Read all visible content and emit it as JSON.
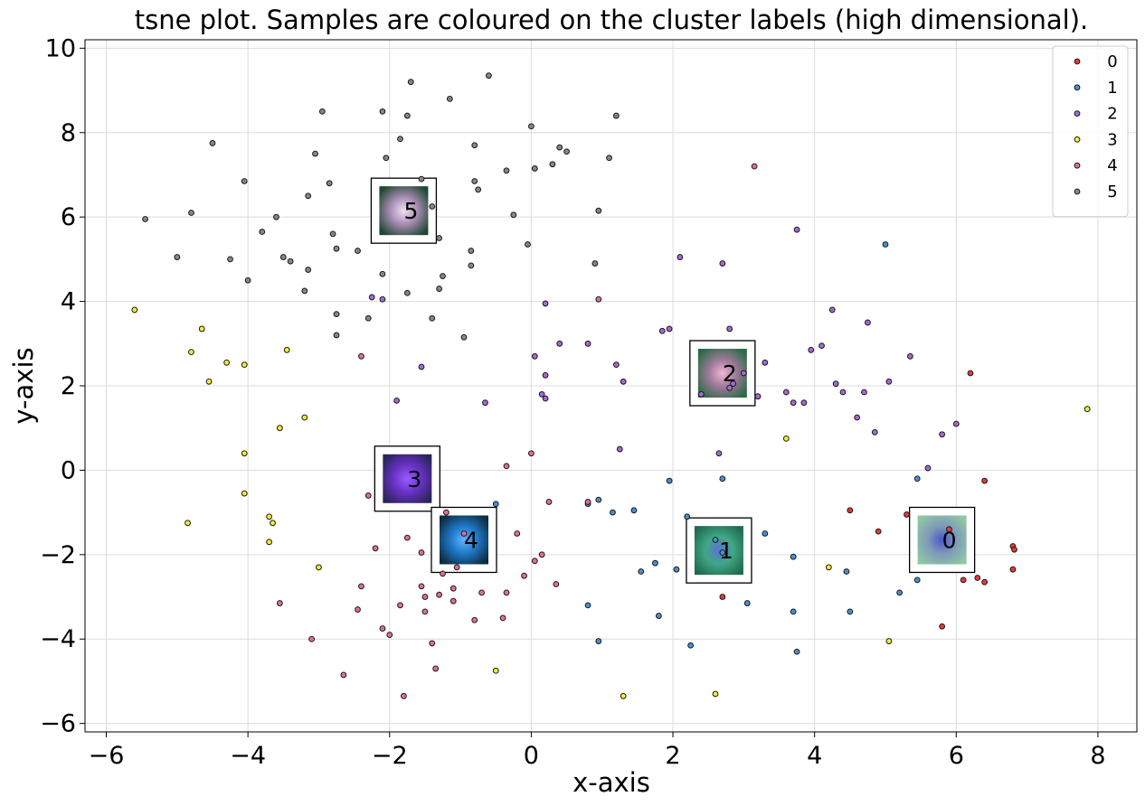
{
  "chart_data": {
    "type": "scatter",
    "title": "tsne plot. Samples are coloured on the cluster labels (high dimensional).",
    "xlabel": "x-axis",
    "ylabel": "y-axis",
    "xlim": [
      -6.3,
      8.55
    ],
    "ylim": [
      -6.2,
      10.2
    ],
    "xticks": [
      -6,
      -4,
      -2,
      0,
      2,
      4,
      6,
      8
    ],
    "xtick_labels": [
      "−6",
      "−4",
      "−2",
      "0",
      "2",
      "4",
      "6",
      "8"
    ],
    "yticks": [
      -6,
      -4,
      -2,
      0,
      2,
      4,
      6,
      8,
      10
    ],
    "ytick_labels": [
      "−6",
      "−4",
      "−2",
      "0",
      "2",
      "4",
      "6",
      "8",
      "10"
    ],
    "grid": true,
    "legend_position": "top-right",
    "series": [
      {
        "name": "0",
        "color": "#e8383a",
        "points": [
          [
            4.5,
            -0.95
          ],
          [
            4.9,
            -1.45
          ],
          [
            5.3,
            -1.05
          ],
          [
            6.2,
            2.3
          ],
          [
            6.4,
            -0.25
          ],
          [
            5.9,
            -1.4
          ],
          [
            6.1,
            -2.6
          ],
          [
            6.3,
            -2.55
          ],
          [
            6.4,
            -2.65
          ],
          [
            6.8,
            -1.8
          ],
          [
            6.82,
            -1.88
          ],
          [
            6.8,
            -2.35
          ],
          [
            5.8,
            -3.7
          ],
          [
            2.7,
            -3.0
          ]
        ]
      },
      {
        "name": "1",
        "color": "#4a8fd2",
        "points": [
          [
            0.8,
            -0.8
          ],
          [
            0.95,
            -0.7
          ],
          [
            1.15,
            -1.0
          ],
          [
            1.45,
            -0.95
          ],
          [
            1.55,
            -2.4
          ],
          [
            1.75,
            -2.2
          ],
          [
            2.05,
            -2.35
          ],
          [
            2.2,
            -1.1
          ],
          [
            1.95,
            -0.25
          ],
          [
            2.7,
            -0.2
          ],
          [
            2.6,
            -1.65
          ],
          [
            2.7,
            -1.95
          ],
          [
            3.3,
            -1.5
          ],
          [
            3.7,
            -2.05
          ],
          [
            3.05,
            -3.15
          ],
          [
            2.25,
            -4.15
          ],
          [
            1.8,
            -3.45
          ],
          [
            0.8,
            -3.2
          ],
          [
            0.95,
            -4.05
          ],
          [
            3.7,
            -3.35
          ],
          [
            3.75,
            -4.3
          ],
          [
            4.45,
            -2.4
          ],
          [
            4.5,
            -3.35
          ],
          [
            5.2,
            -2.9
          ],
          [
            5.45,
            -2.6
          ],
          [
            5.45,
            -0.2
          ],
          [
            5.0,
            5.35
          ],
          [
            -0.5,
            -0.8
          ]
        ]
      },
      {
        "name": "2",
        "color": "#a56ad2",
        "points": [
          [
            2.1,
            5.05
          ],
          [
            2.7,
            4.9
          ],
          [
            3.75,
            5.7
          ],
          [
            2.8,
            3.35
          ],
          [
            1.85,
            3.3
          ],
          [
            1.95,
            3.35
          ],
          [
            1.2,
            2.5
          ],
          [
            1.3,
            2.1
          ],
          [
            2.4,
            1.8
          ],
          [
            2.85,
            2.05
          ],
          [
            3.0,
            2.3
          ],
          [
            3.3,
            2.55
          ],
          [
            3.2,
            1.75
          ],
          [
            3.6,
            1.85
          ],
          [
            3.7,
            1.6
          ],
          [
            3.85,
            1.6
          ],
          [
            3.95,
            2.85
          ],
          [
            4.1,
            2.95
          ],
          [
            4.25,
            3.8
          ],
          [
            4.3,
            2.05
          ],
          [
            4.4,
            1.85
          ],
          [
            4.6,
            1.25
          ],
          [
            4.7,
            1.85
          ],
          [
            4.75,
            3.5
          ],
          [
            4.85,
            0.9
          ],
          [
            5.05,
            2.1
          ],
          [
            5.35,
            2.7
          ],
          [
            5.8,
            0.85
          ],
          [
            6.0,
            1.1
          ],
          [
            5.6,
            0.05
          ],
          [
            2.65,
            0.4
          ],
          [
            1.25,
            0.5
          ],
          [
            0.2,
            3.95
          ],
          [
            0.4,
            3.0
          ],
          [
            0.8,
            3.0
          ],
          [
            0.05,
            2.7
          ],
          [
            0.2,
            2.25
          ],
          [
            0.15,
            1.8
          ],
          [
            0.2,
            1.7
          ],
          [
            -0.65,
            1.6
          ],
          [
            -1.55,
            2.45
          ],
          [
            -1.9,
            1.65
          ],
          [
            -2.1,
            4.05
          ],
          [
            -2.25,
            4.1
          ],
          [
            2.8,
            1.95
          ]
        ]
      },
      {
        "name": "3",
        "color": "#f2ee32",
        "points": [
          [
            -5.6,
            3.8
          ],
          [
            -4.65,
            3.35
          ],
          [
            -4.8,
            2.8
          ],
          [
            -4.3,
            2.55
          ],
          [
            -4.55,
            2.1
          ],
          [
            -4.05,
            2.5
          ],
          [
            -3.45,
            2.85
          ],
          [
            -3.55,
            1.0
          ],
          [
            -3.2,
            1.25
          ],
          [
            -4.05,
            0.4
          ],
          [
            -4.05,
            -0.55
          ],
          [
            -4.85,
            -1.25
          ],
          [
            -3.7,
            -1.1
          ],
          [
            -3.65,
            -1.25
          ],
          [
            -3.7,
            -1.7
          ],
          [
            -3.0,
            -2.3
          ],
          [
            -0.5,
            -4.75
          ],
          [
            1.3,
            -5.35
          ],
          [
            2.6,
            -5.3
          ],
          [
            3.6,
            0.75
          ],
          [
            4.2,
            -2.3
          ],
          [
            5.05,
            -4.05
          ],
          [
            7.85,
            1.45
          ]
        ]
      },
      {
        "name": "4",
        "color": "#e26f95",
        "points": [
          [
            -2.4,
            2.7
          ],
          [
            -2.3,
            -0.6
          ],
          [
            -2.2,
            -1.85
          ],
          [
            -2.4,
            -2.75
          ],
          [
            -2.45,
            -3.3
          ],
          [
            -3.55,
            -3.15
          ],
          [
            -3.1,
            -4.0
          ],
          [
            -2.65,
            -4.85
          ],
          [
            -2.1,
            -3.75
          ],
          [
            -2.0,
            -3.9
          ],
          [
            -1.85,
            -3.2
          ],
          [
            -1.8,
            -5.35
          ],
          [
            -1.75,
            -1.6
          ],
          [
            -1.55,
            -1.95
          ],
          [
            -1.55,
            -2.75
          ],
          [
            -1.5,
            -3.0
          ],
          [
            -1.5,
            -3.35
          ],
          [
            -1.4,
            -4.1
          ],
          [
            -1.35,
            -4.7
          ],
          [
            -1.3,
            -2.95
          ],
          [
            -1.25,
            -2.45
          ],
          [
            -1.2,
            -1.0
          ],
          [
            -1.1,
            -2.8
          ],
          [
            -1.1,
            -3.1
          ],
          [
            -1.05,
            -2.3
          ],
          [
            -0.95,
            -1.5
          ],
          [
            -0.8,
            -3.55
          ],
          [
            -0.7,
            -2.9
          ],
          [
            -0.4,
            -3.5
          ],
          [
            -0.35,
            -2.9
          ],
          [
            -0.2,
            -1.5
          ],
          [
            -0.35,
            0.1
          ],
          [
            -0.1,
            -2.5
          ],
          [
            0.05,
            -2.15
          ],
          [
            0.15,
            -2.0
          ],
          [
            0.25,
            -0.75
          ],
          [
            0.35,
            -2.7
          ],
          [
            0.0,
            0.4
          ],
          [
            0.95,
            4.05
          ],
          [
            3.15,
            7.2
          ],
          [
            0.8,
            -0.75
          ]
        ]
      },
      {
        "name": "5",
        "color": "#878787",
        "points": [
          [
            -5.45,
            5.95
          ],
          [
            -5.0,
            5.05
          ],
          [
            -4.8,
            6.1
          ],
          [
            -4.5,
            7.75
          ],
          [
            -4.25,
            5.0
          ],
          [
            -4.05,
            6.85
          ],
          [
            -4.0,
            4.5
          ],
          [
            -3.8,
            5.65
          ],
          [
            -3.6,
            6.0
          ],
          [
            -3.5,
            5.05
          ],
          [
            -3.4,
            4.95
          ],
          [
            -3.2,
            4.25
          ],
          [
            -3.15,
            4.75
          ],
          [
            -3.15,
            6.5
          ],
          [
            -3.05,
            7.5
          ],
          [
            -2.95,
            8.5
          ],
          [
            -2.85,
            6.8
          ],
          [
            -2.8,
            5.6
          ],
          [
            -2.75,
            5.25
          ],
          [
            -2.75,
            3.7
          ],
          [
            -2.75,
            3.2
          ],
          [
            -2.45,
            5.2
          ],
          [
            -2.3,
            3.6
          ],
          [
            -2.1,
            8.5
          ],
          [
            -2.1,
            4.65
          ],
          [
            -2.05,
            7.4
          ],
          [
            -1.85,
            7.85
          ],
          [
            -1.75,
            8.4
          ],
          [
            -1.75,
            4.2
          ],
          [
            -1.7,
            9.2
          ],
          [
            -1.55,
            6.9
          ],
          [
            -1.4,
            3.6
          ],
          [
            -1.3,
            4.3
          ],
          [
            -1.25,
            4.6
          ],
          [
            -1.3,
            5.5
          ],
          [
            -1.4,
            6.25
          ],
          [
            -1.15,
            8.8
          ],
          [
            -0.95,
            3.15
          ],
          [
            -0.85,
            4.85
          ],
          [
            -0.85,
            5.2
          ],
          [
            -0.8,
            6.85
          ],
          [
            -0.8,
            7.7
          ],
          [
            -0.75,
            6.65
          ],
          [
            -0.6,
            9.35
          ],
          [
            -0.35,
            7.1
          ],
          [
            -0.25,
            6.05
          ],
          [
            -0.05,
            5.35
          ],
          [
            0.0,
            8.15
          ],
          [
            0.05,
            7.15
          ],
          [
            0.3,
            7.25
          ],
          [
            0.4,
            7.65
          ],
          [
            0.5,
            7.55
          ],
          [
            0.9,
            4.9
          ],
          [
            0.95,
            6.15
          ],
          [
            1.1,
            7.4
          ],
          [
            1.2,
            8.4
          ]
        ]
      }
    ],
    "thumbnails": [
      {
        "label": "5",
        "x": -1.8,
        "y": 6.15,
        "colors": [
          "#f0e2f4",
          "#a98db4",
          "#1e4630"
        ]
      },
      {
        "label": "2",
        "x": 2.7,
        "y": 2.3,
        "colors": [
          "#f1b6d4",
          "#9f7a9a",
          "#2a6a46"
        ]
      },
      {
        "label": "3",
        "x": -1.75,
        "y": -0.2,
        "colors": [
          "#9b5cff",
          "#6a32c8",
          "#2a2457"
        ]
      },
      {
        "label": "4",
        "x": -0.95,
        "y": -1.65,
        "colors": [
          "#5fb4ff",
          "#1f78c8",
          "#0d2b3e"
        ]
      },
      {
        "label": "1",
        "x": 2.65,
        "y": -1.9,
        "colors": [
          "#5a6fd8",
          "#40a886",
          "#1f6b4e"
        ]
      },
      {
        "label": "0",
        "x": 5.8,
        "y": -1.65,
        "colors": [
          "#4a56c8",
          "#7e98b8",
          "#8ec8a4"
        ]
      }
    ]
  }
}
